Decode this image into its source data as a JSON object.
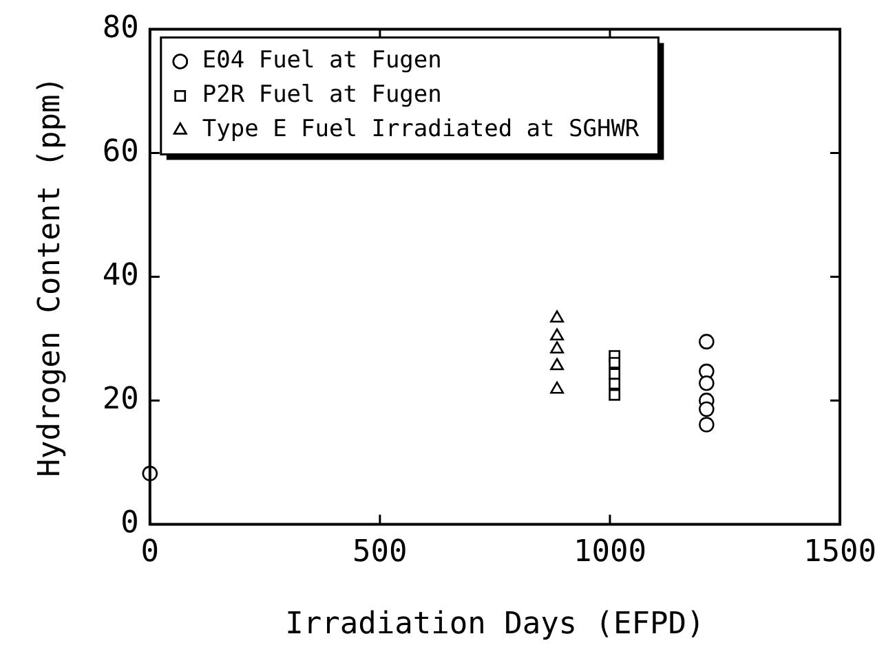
{
  "chart_data": {
    "type": "scatter",
    "xlabel": "Irradiation Days (EFPD)",
    "ylabel": "Hydrogen Content (ppm)",
    "xlim": [
      0,
      1500
    ],
    "xticks": [
      0,
      500,
      1000,
      1500
    ],
    "ylim": [
      0,
      80
    ],
    "yticks": [
      0,
      20,
      40,
      60,
      80
    ],
    "grid": false,
    "legend": "top left",
    "series": [
      {
        "name": "E04 Fuel at Fugen",
        "color": "#000000",
        "marker": "circle",
        "x": [
          0,
          1210,
          1210,
          1210,
          1210,
          1210,
          1210
        ],
        "values": [
          8.2,
          29.5,
          24.7,
          22.8,
          20.0,
          18.6,
          16.1
        ]
      },
      {
        "name": "P2R Fuel at Fugen",
        "color": "#000000",
        "marker": "square",
        "x": [
          1010,
          1010,
          1010,
          1010,
          1010
        ],
        "values": [
          27.2,
          26.1,
          24.3,
          22.7,
          20.9
        ]
      },
      {
        "name": "Type E Fuel Irradiated at SGHWR",
        "color": "#000000",
        "marker": "triangle",
        "x": [
          885,
          885,
          885,
          885,
          885
        ],
        "values": [
          33.3,
          30.4,
          28.3,
          25.6,
          21.8
        ]
      }
    ]
  }
}
